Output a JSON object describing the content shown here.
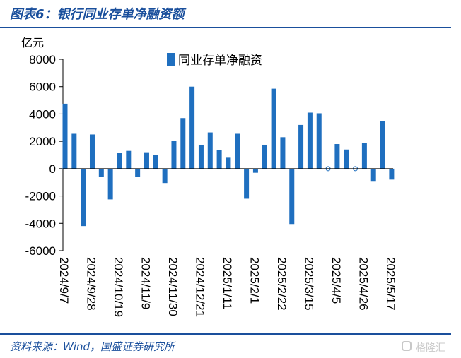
{
  "header": {
    "title": "图表6：银行同业存单净融资额"
  },
  "footer": {
    "source": "资料来源：Wind，国盛证券研究所",
    "watermark": "格隆汇"
  },
  "colors": {
    "bar": "#1f6fbf",
    "title": "#1a4f9c"
  },
  "chart_data": {
    "type": "bar",
    "unit_label": "亿元",
    "legend": "top-center",
    "series": [
      {
        "name": "同业存单净融资",
        "values": [
          4750,
          2550,
          -4200,
          2500,
          -600,
          -2250,
          1150,
          1300,
          -600,
          1200,
          1000,
          -1050,
          2050,
          3700,
          6000,
          1750,
          2650,
          1350,
          800,
          2550,
          -2200,
          -300,
          1750,
          5850,
          2300,
          -4050,
          3200,
          4100,
          4050,
          0,
          1800,
          1400,
          0,
          1900,
          -950,
          3500,
          -800
        ]
      }
    ],
    "x_tick_labels": [
      "2024/9/7",
      "2024/9/28",
      "2024/10/19",
      "2024/11/9",
      "2024/11/30",
      "2024/12/21",
      "2025/1/11",
      "2025/2/1",
      "2025/2/22",
      "2025/3/15",
      "2025/4/5",
      "2025/4/26",
      "2025/5/17"
    ],
    "y_ticks": [
      8000,
      6000,
      4000,
      2000,
      0,
      -2000,
      -4000,
      -6000
    ],
    "ylim": [
      -6000,
      8000
    ],
    "grid": false
  }
}
